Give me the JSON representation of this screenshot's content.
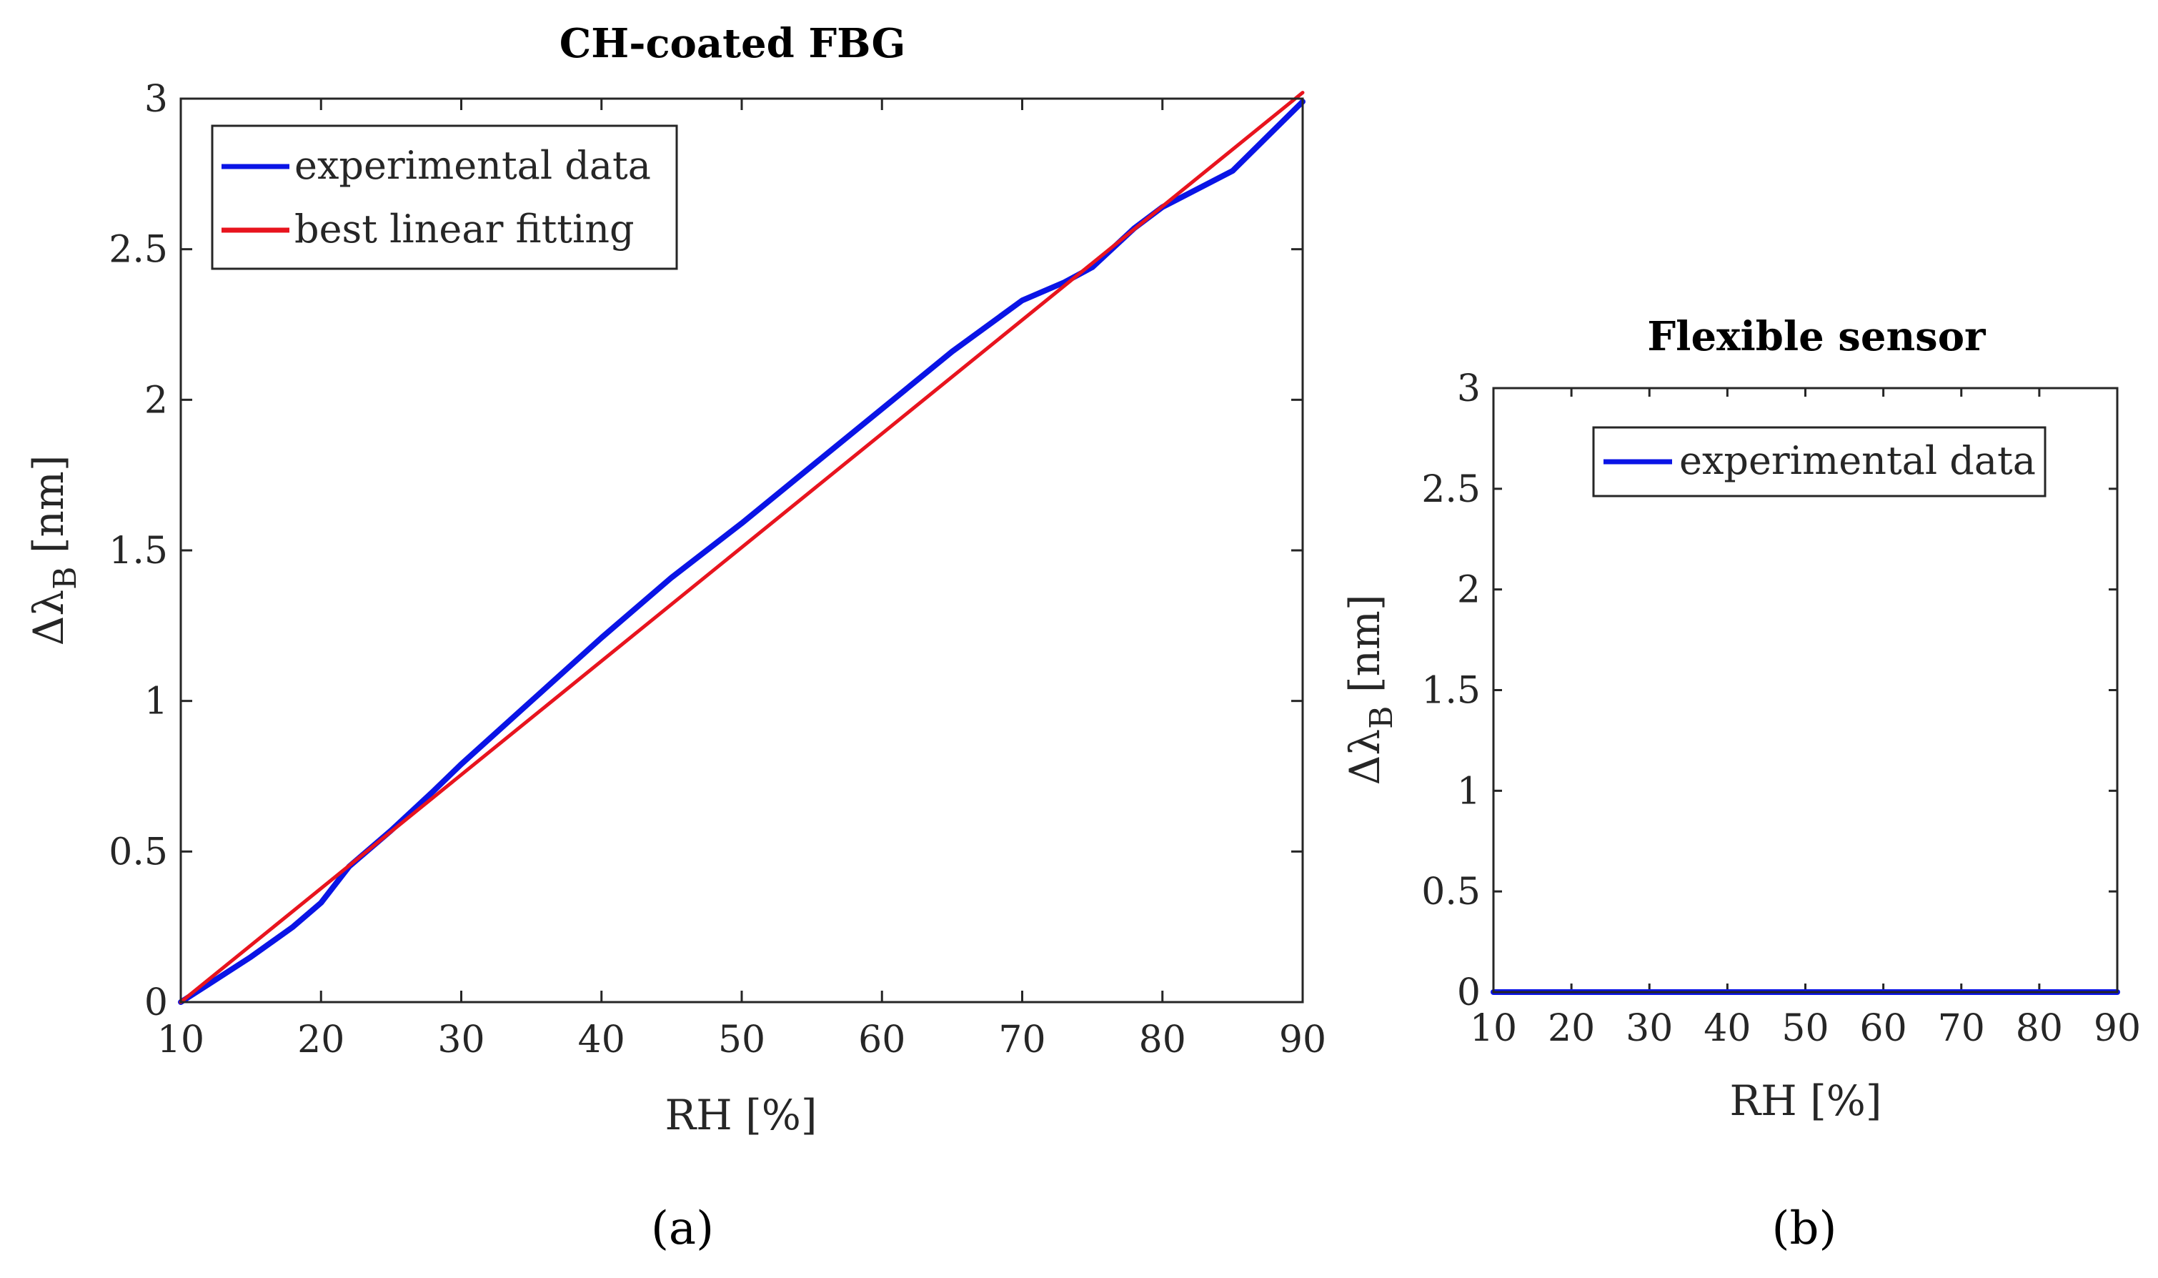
{
  "colors": {
    "experimental": "#0a14e6",
    "fit": "#e8141e",
    "axis": "#262626"
  },
  "chart_data": [
    {
      "type": "line",
      "title": "CH-coated FBG",
      "xlabel": "RH [%]",
      "ylabel_main": "Δλ",
      "ylabel_sub": "B",
      "ylabel_unit": " [nm]",
      "xlim": [
        10,
        90
      ],
      "ylim": [
        0,
        3
      ],
      "xticks": [
        10,
        20,
        30,
        40,
        50,
        60,
        70,
        80,
        90
      ],
      "xtick_labels": [
        "10",
        "20",
        "30",
        "40",
        "50",
        "60",
        "70",
        "80",
        "90"
      ],
      "yticks": [
        0,
        0.5,
        1,
        1.5,
        2,
        2.5,
        3
      ],
      "ytick_labels": [
        "0",
        "0.5",
        "1",
        "1.5",
        "2",
        "2.5",
        "3"
      ],
      "legend": [
        "experimental data",
        "best linear fitting"
      ],
      "legend_position": "top-left",
      "series": [
        {
          "name": "experimental data",
          "x": [
            10,
            12,
            15,
            18,
            20,
            22,
            25,
            28,
            30,
            35,
            40,
            45,
            50,
            55,
            60,
            65,
            70,
            73,
            75,
            78,
            80,
            85,
            90
          ],
          "y": [
            0,
            0.06,
            0.15,
            0.25,
            0.33,
            0.45,
            0.57,
            0.7,
            0.79,
            1.0,
            1.21,
            1.41,
            1.59,
            1.78,
            1.97,
            2.16,
            2.33,
            2.39,
            2.44,
            2.57,
            2.64,
            2.76,
            2.99
          ]
        },
        {
          "name": "best linear fitting",
          "x": [
            10,
            90
          ],
          "y": [
            0,
            3.02
          ]
        }
      ],
      "caption": "(a)"
    },
    {
      "type": "line",
      "title": "Flexible sensor",
      "xlabel": "RH [%]",
      "ylabel_main": "Δλ",
      "ylabel_sub": "B",
      "ylabel_unit": " [nm]",
      "xlim": [
        10,
        90
      ],
      "ylim": [
        0,
        3
      ],
      "xticks": [
        10,
        20,
        30,
        40,
        50,
        60,
        70,
        80,
        90
      ],
      "xtick_labels": [
        "10",
        "20",
        "30",
        "40",
        "50",
        "60",
        "70",
        "80",
        "90"
      ],
      "yticks": [
        0,
        0.5,
        1,
        1.5,
        2,
        2.5,
        3
      ],
      "ytick_labels": [
        "0",
        "0.5",
        "1",
        "1.5",
        "2",
        "2.5",
        "3"
      ],
      "legend": [
        "experimental data"
      ],
      "legend_position": "top-center",
      "series": [
        {
          "name": "experimental data",
          "x": [
            10,
            90
          ],
          "y": [
            0,
            0
          ]
        }
      ],
      "caption": "(b)"
    }
  ]
}
